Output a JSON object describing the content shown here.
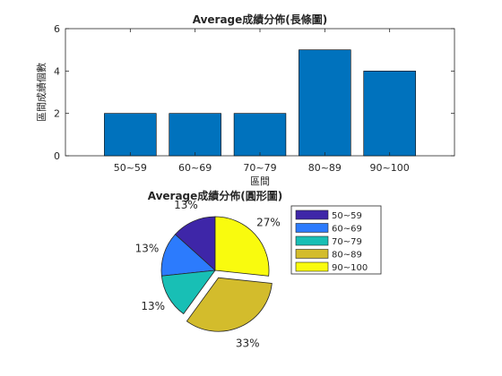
{
  "chart_data": [
    {
      "type": "bar",
      "title": "Average成績分佈(長條圖)",
      "xlabel": "區間",
      "ylabel": "區間成績個數",
      "categories": [
        "50~59",
        "60~69",
        "70~79",
        "80~89",
        "90~100"
      ],
      "values": [
        2,
        2,
        2,
        5,
        4
      ],
      "ylim": [
        0,
        6
      ],
      "yticks": [
        "0",
        "2",
        "4",
        "6"
      ],
      "bar_color": "#0072BD",
      "grid": false
    },
    {
      "type": "pie",
      "title": "Average成績分佈(圓形圖)",
      "categories": [
        "50~59",
        "60~69",
        "70~79",
        "80~89",
        "90~100"
      ],
      "values": [
        2,
        2,
        2,
        5,
        4
      ],
      "percent_labels": [
        "13%",
        "13%",
        "13%",
        "33%",
        "27%"
      ],
      "colors": [
        "#3E26A8",
        "#2C7BFD",
        "#18BFB5",
        "#D3BC2C",
        "#F9FB0E"
      ],
      "exploded": "80~89",
      "legend": "right"
    }
  ]
}
